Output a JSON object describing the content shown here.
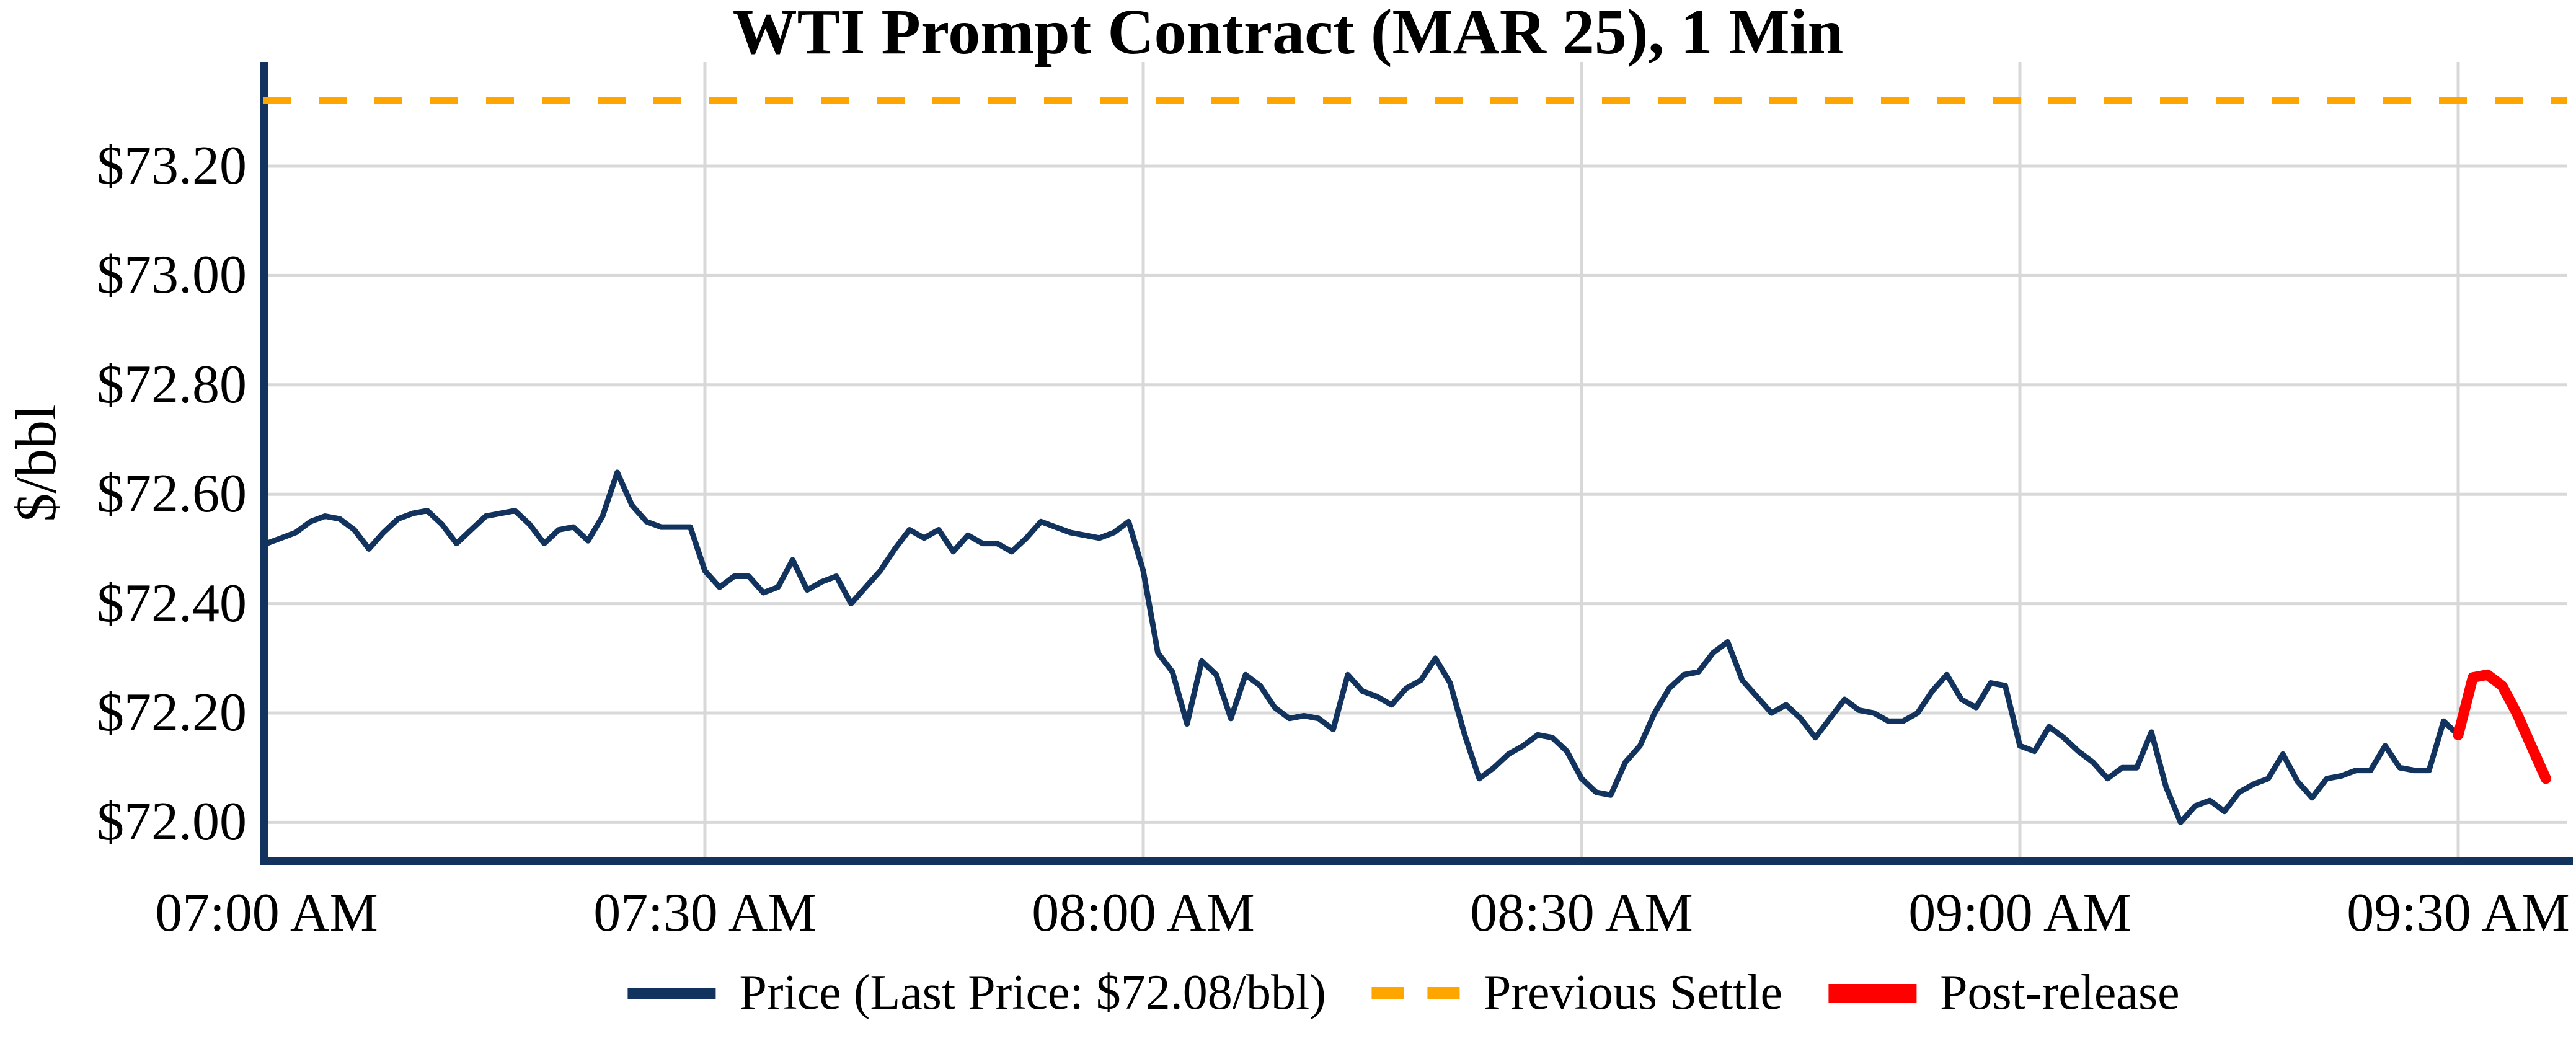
{
  "title": "WTI Prompt Contract (MAR 25), 1 Min",
  "y_axis": {
    "label": "$/bbl",
    "ticks": [
      {
        "value": 73.2,
        "label": "$73.20"
      },
      {
        "value": 73.0,
        "label": "$73.00"
      },
      {
        "value": 72.8,
        "label": "$72.80"
      },
      {
        "value": 72.6,
        "label": "$72.60"
      },
      {
        "value": 72.4,
        "label": "$72.40"
      },
      {
        "value": 72.2,
        "label": "$72.20"
      },
      {
        "value": 72.0,
        "label": "$72.00"
      }
    ]
  },
  "x_axis": {
    "ticks": [
      {
        "minute": 0,
        "label": "07:00 AM"
      },
      {
        "minute": 30,
        "label": "07:30 AM"
      },
      {
        "minute": 60,
        "label": "08:00 AM"
      },
      {
        "minute": 90,
        "label": "08:30 AM"
      },
      {
        "minute": 120,
        "label": "09:00 AM"
      },
      {
        "minute": 150,
        "label": "09:30 AM"
      }
    ]
  },
  "legend": [
    {
      "name": "price",
      "label": "Price (Last Price: $72.08/bbl)",
      "color": "#11335d",
      "style": "solid"
    },
    {
      "name": "previous-settle",
      "label": "Previous Settle",
      "color": "#ffa500",
      "style": "dashed"
    },
    {
      "name": "post-release",
      "label": "Post-release",
      "color": "#fe0000",
      "style": "solid-thick"
    }
  ],
  "style": {
    "grid_color": "#d8d8d8",
    "axis_color": "#11335d",
    "background": "#ffffff"
  },
  "chart_data": {
    "type": "line",
    "title": "WTI Prompt Contract (MAR 25), 1 Min",
    "xlabel": "",
    "ylabel": "$/bbl",
    "x_unit": "minutes after 07:00 AM, 1-minute bars",
    "grid": true,
    "legend_position": "bottom-center",
    "ylim": [
      71.92,
      73.39
    ],
    "xlim_minutes": [
      0,
      158
    ],
    "y_ticks": [
      72.0,
      72.2,
      72.4,
      72.6,
      72.8,
      73.0,
      73.2
    ],
    "x_tick_minutes": [
      0,
      30,
      60,
      90,
      120,
      150
    ],
    "x_tick_labels": [
      "07:00 AM",
      "07:30 AM",
      "08:00 AM",
      "08:30 AM",
      "09:00 AM",
      "09:30 AM"
    ],
    "previous_settle": 73.32,
    "last_price": 72.08,
    "series": [
      {
        "name": "Price (Last Price: $72.08/bbl)",
        "color": "#11335d",
        "style": "solid",
        "line_width": 9,
        "start_minute": 0,
        "interval_minutes": 1,
        "values": [
          72.51,
          72.52,
          72.53,
          72.55,
          72.56,
          72.555,
          72.535,
          72.5,
          72.53,
          72.555,
          72.565,
          72.57,
          72.545,
          72.51,
          72.535,
          72.56,
          72.565,
          72.57,
          72.545,
          72.51,
          72.535,
          72.54,
          72.515,
          72.56,
          72.64,
          72.58,
          72.55,
          72.54,
          72.54,
          72.54,
          72.46,
          72.43,
          72.45,
          72.45,
          72.42,
          72.43,
          72.48,
          72.425,
          72.44,
          72.45,
          72.4,
          72.43,
          72.46,
          72.5,
          72.535,
          72.52,
          72.535,
          72.495,
          72.525,
          72.51,
          72.51,
          72.495,
          72.52,
          72.55,
          72.54,
          72.53,
          72.525,
          72.52,
          72.53,
          72.55,
          72.46,
          72.31,
          72.275,
          72.18,
          72.295,
          72.27,
          72.19,
          72.27,
          72.25,
          72.21,
          72.19,
          72.195,
          72.19,
          72.17,
          72.27,
          72.24,
          72.23,
          72.215,
          72.245,
          72.26,
          72.3,
          72.255,
          72.16,
          72.08,
          72.1,
          72.125,
          72.14,
          72.16,
          72.155,
          72.13,
          72.08,
          72.055,
          72.05,
          72.11,
          72.14,
          72.2,
          72.245,
          72.27,
          72.275,
          72.31,
          72.33,
          72.26,
          72.23,
          72.2,
          72.215,
          72.19,
          72.155,
          72.19,
          72.225,
          72.205,
          72.2,
          72.185,
          72.185,
          72.2,
          72.24,
          72.27,
          72.225,
          72.21,
          72.255,
          72.25,
          72.14,
          72.13,
          72.175,
          72.155,
          72.13,
          72.11,
          72.08,
          72.1,
          72.1,
          72.165,
          72.065,
          72.0,
          72.03,
          72.04,
          72.02,
          72.055,
          72.07,
          72.08,
          72.125,
          72.075,
          72.045,
          72.08,
          72.085,
          72.095,
          72.095,
          72.14,
          72.1,
          72.095,
          72.095,
          72.185,
          72.16
        ]
      },
      {
        "name": "Post-release",
        "color": "#fe0000",
        "style": "solid",
        "line_width": 17,
        "start_minute": 150,
        "interval_minutes": 1,
        "values": [
          72.16,
          72.265,
          72.27,
          72.25,
          72.2,
          72.14,
          72.08
        ]
      },
      {
        "name": "Previous Settle",
        "color": "#ffa500",
        "style": "dashed",
        "line_width": 11,
        "constant_value": 73.32
      }
    ]
  }
}
